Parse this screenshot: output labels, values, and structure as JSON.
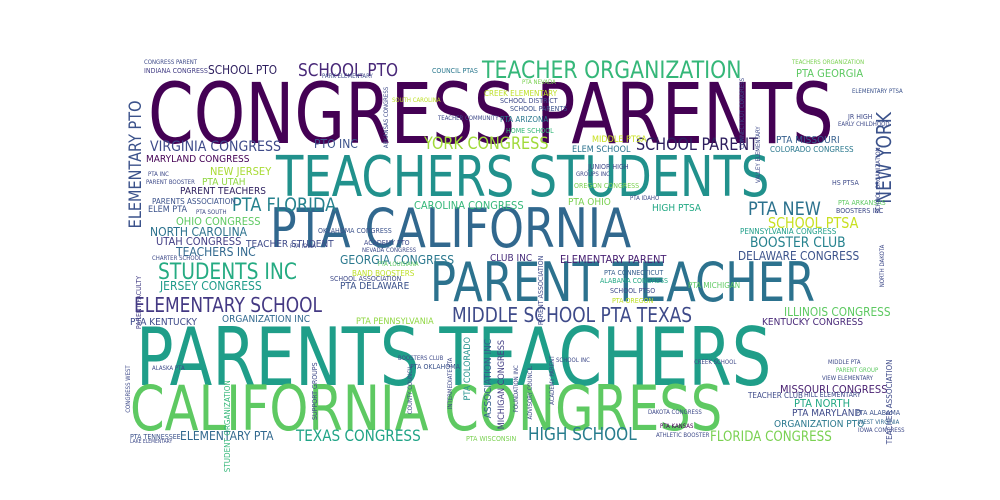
{
  "words": [
    {
      "text": "CONGRESS PARENTS",
      "color": "#440154"
    },
    {
      "text": "PARENTS TEACHERS",
      "color": "#1f9e89"
    },
    {
      "text": "CALIFORNIA CONGRESS",
      "color": "#5ec962"
    },
    {
      "text": "TEACHERS STUDENTS",
      "color": "#21918c"
    },
    {
      "text": "PTA CALIFORNIA",
      "color": "#31688e"
    },
    {
      "text": "PARENT TEACHER",
      "color": "#2c728e"
    },
    {
      "text": "TEACHER ORGANIZATION",
      "color": "#35b779"
    },
    {
      "text": "SCHOOL PTO",
      "color": "#482878"
    },
    {
      "text": "ELEMENTARY PTO",
      "color": "#3b528b"
    },
    {
      "text": "STUDENTS INC",
      "color": "#25ab82"
    },
    {
      "text": "ELEMENTARY SCHOOL",
      "color": "#443983"
    },
    {
      "text": "MIDDLE SCHOOL PTA TEXAS",
      "color": "#3e4a89"
    },
    {
      "text": "YORK CONGRESS",
      "color": "#a0da39"
    },
    {
      "text": "SCHOOL PARENT",
      "color": "#2d1e5e"
    },
    {
      "text": "NEW YORK",
      "color": "#3b528b"
    },
    {
      "text": "PTA FLORIDA",
      "color": "#26828e"
    },
    {
      "text": "PTA NEW",
      "color": "#2c728e"
    },
    {
      "text": "SCHOOL PTSA",
      "color": "#c8e020"
    },
    {
      "text": "VIRGINIA CONGRESS",
      "color": "#3e4a89"
    },
    {
      "text": "HIGH SCHOOL",
      "color": "#287d8e"
    },
    {
      "text": "TEXAS CONGRESS",
      "color": "#20a486"
    },
    {
      "text": "FLORIDA CONGRESS",
      "color": "#7ad151"
    },
    {
      "text": "ELEMENTARY PTA",
      "color": "#31688e"
    },
    {
      "text": "BOOSTER CLUB",
      "color": "#26828e"
    },
    {
      "text": "DELAWARE CONGRESS",
      "color": "#3b528b"
    },
    {
      "text": "JERSEY CONGRESS",
      "color": "#1e9b8a"
    },
    {
      "text": "GEORGIA CONGRESS",
      "color": "#2a788e"
    },
    {
      "text": "CLUB INC",
      "color": "#472d7b"
    },
    {
      "text": "ELEMENTARY PARENT",
      "color": "#482173"
    },
    {
      "text": "CAROLINA CONGRESS",
      "color": "#35b779"
    },
    {
      "text": "PTO INC",
      "color": "#3b528b"
    },
    {
      "text": "NORTH CAROLINA",
      "color": "#2c728e"
    },
    {
      "text": "UTAH CONGRESS",
      "color": "#433e85"
    },
    {
      "text": "TEACHERS INC",
      "color": "#31688e"
    },
    {
      "text": "OHIO CONGRESS",
      "color": "#5ec962"
    },
    {
      "text": "NEW JERSEY",
      "color": "#a8db34"
    },
    {
      "text": "MARYLAND CONGRESS",
      "color": "#440154"
    },
    {
      "text": "PTA UTAH",
      "color": "#90d743"
    },
    {
      "text": "PARENT TEACHERS",
      "color": "#2d1e5e"
    },
    {
      "text": "PTA GEORGIA",
      "color": "#5ec962"
    },
    {
      "text": "PTA MISSOURI",
      "color": "#355f8d"
    },
    {
      "text": "MISSOURI CONGRESS",
      "color": "#481f70"
    },
    {
      "text": "PTA NORTH",
      "color": "#22a884"
    },
    {
      "text": "PTA MARYLAND",
      "color": "#3e4a89"
    },
    {
      "text": "ORGANIZATION PTO",
      "color": "#2a788e"
    },
    {
      "text": "KENTUCKY CONGRESS",
      "color": "#482878"
    },
    {
      "text": "ILLINOIS CONGRESS",
      "color": "#5ec962"
    },
    {
      "text": "ORGANIZATION INC",
      "color": "#31688e"
    },
    {
      "text": "PTA KENTUCKY",
      "color": "#3e4a89"
    },
    {
      "text": "PTA PENNSYLVANIA",
      "color": "#90d743"
    },
    {
      "text": "PTA DELAWARE",
      "color": "#3b528b"
    },
    {
      "text": "PTA OHIO",
      "color": "#7ad151"
    },
    {
      "text": "HIGH PTSA",
      "color": "#22a884"
    },
    {
      "text": "ASSOCIATION INC",
      "color": "#355f8d"
    },
    {
      "text": "MICHIGAN CONGRESS",
      "color": "#433e85"
    },
    {
      "text": "PTA COLORADO",
      "color": "#21918c"
    },
    {
      "text": "STUDENT ORGANIZATION",
      "color": "#35b779"
    },
    {
      "text": "PENNSYLVANIA CONGRESS",
      "color": "#1f9e89"
    },
    {
      "text": "PARENT FACULTY",
      "color": "#433e85"
    },
    {
      "text": "ELEM PTA",
      "color": "#3b528b"
    },
    {
      "text": "ELEM SCHOOL",
      "color": "#2c728e"
    },
    {
      "text": "MIDDLE PTSA",
      "color": "#c8e020"
    },
    {
      "text": "JUNIOR HIGH",
      "color": "#3e4a89"
    },
    {
      "text": "PTA CONNECTICUT",
      "color": "#355f8d"
    },
    {
      "text": "ALABAMA CONGRESS",
      "color": "#22a884"
    },
    {
      "text": "PTA OREGON",
      "color": "#bddf26"
    },
    {
      "text": "OREGON CONGRESS",
      "color": "#7ad151"
    },
    {
      "text": "OKLAHOMA CONGRESS",
      "color": "#3b528b"
    },
    {
      "text": "BAND BOOSTERS",
      "color": "#bddf26"
    },
    {
      "text": "SCHOOL ASSOCIATION",
      "color": "#3e4a89"
    },
    {
      "text": "PTA ARIZONA",
      "color": "#2a788e"
    },
    {
      "text": "HOME SCHOOL",
      "color": "#35b779"
    },
    {
      "text": "CREEK ELEMENTARY",
      "color": "#bddf26"
    },
    {
      "text": "SCHOOL DISTRICT",
      "color": "#3e4a89"
    },
    {
      "text": "SCHOOL PARENTS",
      "color": "#3b528b"
    },
    {
      "text": "PTA NEVADA",
      "color": "#7ad151"
    },
    {
      "text": "COUNCIL PTAS",
      "color": "#2a788e"
    },
    {
      "text": "CONGRESS PARENT",
      "color": "#3e4a89"
    },
    {
      "text": "INDIANA CONGRESS",
      "color": "#433e85"
    },
    {
      "text": "TEACHERS ORGANIZATION",
      "color": "#7ad151"
    },
    {
      "text": "ELEMENTARY PTSA",
      "color": "#3b528b"
    },
    {
      "text": "SCHOOL PTO",
      "color": "#2d1e5e"
    },
    {
      "text": "PTA ARKANSAS",
      "color": "#5ec962"
    },
    {
      "text": "BOOSTERS INC",
      "color": "#3e4a89"
    },
    {
      "text": "COLORADO CONGRESS",
      "color": "#2a788e"
    },
    {
      "text": "MIDDLE PTA",
      "color": "#3e4a89"
    },
    {
      "text": "PARENT GROUP",
      "color": "#5ec962"
    },
    {
      "text": "PTA ALABAMA",
      "color": "#3b528b"
    },
    {
      "text": "WEST VIRGINIA",
      "color": "#31688e"
    },
    {
      "text": "PTA KANSAS",
      "color": "#440154"
    },
    {
      "text": "PTA WISCONSIN",
      "color": "#7ad151"
    },
    {
      "text": "PTA TENNESSEE",
      "color": "#3b528b"
    },
    {
      "text": "ATHLETIC BOOSTER",
      "color": "#3e4a89"
    },
    {
      "text": "DAKOTA CONGRESS",
      "color": "#3e4a89"
    },
    {
      "text": "PTA OKLAHOMA",
      "color": "#3b528b"
    },
    {
      "text": "ACADEMY PTO",
      "color": "#3e4a89"
    },
    {
      "text": "NEVADA CONGRESS",
      "color": "#3e4a89"
    },
    {
      "text": "PTA LOUISIANA",
      "color": "#5ec962"
    },
    {
      "text": "PARENTS ASSOCIATION",
      "color": "#3b528b"
    },
    {
      "text": "PTA SOUTH",
      "color": "#3e4a89"
    },
    {
      "text": "PARENT BOOSTER",
      "color": "#3e4a89"
    },
    {
      "text": "PARK ELEMENTARY",
      "color": "#3e4a89"
    },
    {
      "text": "SOUTH CAROLINA",
      "color": "#bddf26"
    },
    {
      "text": "ARKANSAS CONGRESS",
      "color": "#3e4a89"
    },
    {
      "text": "TEACHER STUDENT",
      "color": "#3e4a89"
    },
    {
      "text": "SCHOOL PTSO",
      "color": "#3e4a89"
    },
    {
      "text": "PTA IOWA",
      "color": "#3e4a89"
    },
    {
      "text": "PTA INC",
      "color": "#3e4a89"
    },
    {
      "text": "ALASKA PTA",
      "color": "#3e4a89"
    },
    {
      "text": "TEACHER CLUB",
      "color": "#3e4a89"
    },
    {
      "text": "HS PTSA",
      "color": "#3e4a89"
    },
    {
      "text": "PTA MICHIGAN",
      "color": "#5ec962"
    },
    {
      "text": "CHARTER SCHOOL",
      "color": "#3e4a89"
    },
    {
      "text": "CONGRESS WEST",
      "color": "#3e4a89"
    },
    {
      "text": "LAKE ELEMENTARY",
      "color": "#3e4a89"
    },
    {
      "text": "SUPPORT GROUPS",
      "color": "#3e4a89"
    },
    {
      "text": "BOOSTERS CLUB",
      "color": "#3e4a89"
    },
    {
      "text": "ACADEMY PARENT",
      "color": "#3e4a89"
    },
    {
      "text": "INTERMEDIATE PTA",
      "color": "#3e4a89"
    },
    {
      "text": "PARENT ASSOCIATION",
      "color": "#3e4a89"
    },
    {
      "text": "CREEK SCHOOL",
      "color": "#3e4a89"
    },
    {
      "text": "HILL ELEMENTARY",
      "color": "#3e4a89"
    },
    {
      "text": "JR HIGH",
      "color": "#3e4a89"
    },
    {
      "text": "PTA IDAHO",
      "color": "#3e4a89"
    },
    {
      "text": "GROUPS INC",
      "color": "#3e4a89"
    },
    {
      "text": "CONNECTICUT CONGRESS",
      "color": "#3e4a89"
    },
    {
      "text": "VALLEY ELEMENTARY",
      "color": "#3e4a89"
    },
    {
      "text": "NORTH DAKOTA",
      "color": "#3e4a89"
    },
    {
      "text": "TEACHER ASSOCIATION",
      "color": "#3e4a89"
    },
    {
      "text": "SCHOOL ORGANIZATION",
      "color": "#3e4a89"
    },
    {
      "text": "VIEW ELEMENTARY",
      "color": "#3e4a89"
    },
    {
      "text": "SCHOOL INC",
      "color": "#3e4a89"
    },
    {
      "text": "FOUNDATION INC",
      "color": "#3e4a89"
    },
    {
      "text": "ADVISORY COUNCIL",
      "color": "#3e4a89"
    },
    {
      "text": "COUNTY COUNCIL",
      "color": "#3e4a89"
    },
    {
      "text": "TEACHER COMMUNITY",
      "color": "#3e4a89"
    },
    {
      "text": "EARLY CHILDHOOD",
      "color": "#3e4a89"
    },
    {
      "text": "IOWA CONGRESS",
      "color": "#3e4a89"
    }
  ]
}
